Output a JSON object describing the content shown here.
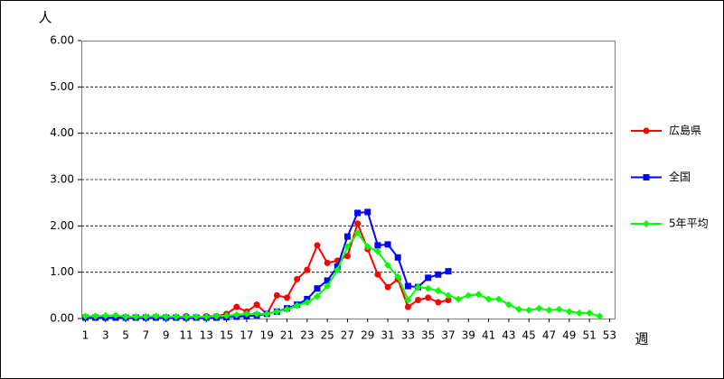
{
  "chart_data": {
    "type": "line",
    "y_label": "人",
    "x_label": "週",
    "x": [
      1,
      2,
      3,
      4,
      5,
      6,
      7,
      8,
      9,
      10,
      11,
      12,
      13,
      14,
      15,
      16,
      17,
      18,
      19,
      20,
      21,
      22,
      23,
      24,
      25,
      26,
      27,
      28,
      29,
      30,
      31,
      32,
      33,
      34,
      35,
      36,
      37,
      38,
      39,
      40,
      41,
      42,
      43,
      44,
      45,
      46,
      47,
      48,
      49,
      50,
      51,
      52,
      53
    ],
    "xlim": [
      0.6,
      53.5
    ],
    "xticks": [
      1,
      3,
      5,
      7,
      9,
      11,
      13,
      15,
      17,
      19,
      21,
      23,
      25,
      27,
      29,
      31,
      33,
      35,
      37,
      39,
      41,
      43,
      45,
      47,
      49,
      51,
      53
    ],
    "ylim": [
      0,
      6
    ],
    "yticks": [
      {
        "value": 0,
        "label": "0.00"
      },
      {
        "value": 1,
        "label": "1.00"
      },
      {
        "value": 2,
        "label": "2.00"
      },
      {
        "value": 3,
        "label": "3.00"
      },
      {
        "value": 4,
        "label": "4.00"
      },
      {
        "value": 5,
        "label": "5.00"
      },
      {
        "value": 6,
        "label": "6.00"
      }
    ],
    "grid": true,
    "legend": "right",
    "series": [
      {
        "name": "広島県",
        "color": "#ff0000",
        "marker": "circle",
        "values": [
          0.02,
          0.02,
          0.02,
          0.02,
          0.02,
          0.02,
          0.02,
          0.02,
          0.02,
          0.02,
          0.05,
          0.02,
          0.05,
          0.05,
          0.1,
          0.25,
          0.15,
          0.3,
          0.1,
          0.5,
          0.45,
          0.85,
          1.05,
          1.58,
          1.2,
          1.25,
          1.35,
          2.05,
          1.5,
          0.95,
          0.68,
          0.85,
          0.25,
          0.4,
          0.45,
          0.35,
          0.4,
          null,
          null,
          null,
          null,
          null,
          null,
          null,
          null,
          null,
          null,
          null,
          null,
          null,
          null,
          null,
          null
        ]
      },
      {
        "name": "全国",
        "color": "#0000ff",
        "marker": "square",
        "values": [
          0.02,
          0.02,
          0.02,
          0.02,
          0.02,
          0.02,
          0.02,
          0.02,
          0.02,
          0.02,
          0.02,
          0.02,
          0.02,
          0.02,
          0.03,
          0.04,
          0.05,
          0.07,
          0.1,
          0.15,
          0.22,
          0.3,
          0.42,
          0.65,
          0.82,
          1.12,
          1.77,
          2.28,
          2.3,
          1.58,
          1.6,
          1.32,
          0.7,
          0.68,
          0.88,
          0.95,
          1.02,
          null,
          null,
          null,
          null,
          null,
          null,
          null,
          null,
          null,
          null,
          null,
          null,
          null,
          null,
          null,
          null
        ]
      },
      {
        "name": "5年平均",
        "color": "#00ff00",
        "marker": "diamond",
        "values": [
          0.05,
          0.05,
          0.06,
          0.07,
          0.04,
          0.04,
          0.04,
          0.05,
          0.04,
          0.04,
          0.04,
          0.04,
          0.04,
          0.05,
          0.06,
          0.08,
          0.1,
          0.1,
          0.1,
          0.15,
          0.2,
          0.28,
          0.35,
          0.48,
          0.7,
          1.05,
          1.55,
          1.85,
          1.55,
          1.45,
          1.15,
          0.9,
          0.4,
          0.68,
          0.65,
          0.6,
          0.5,
          0.42,
          0.5,
          0.52,
          0.42,
          0.42,
          0.3,
          0.2,
          0.18,
          0.22,
          0.18,
          0.2,
          0.15,
          0.12,
          0.12,
          0.05,
          null
        ]
      }
    ]
  }
}
